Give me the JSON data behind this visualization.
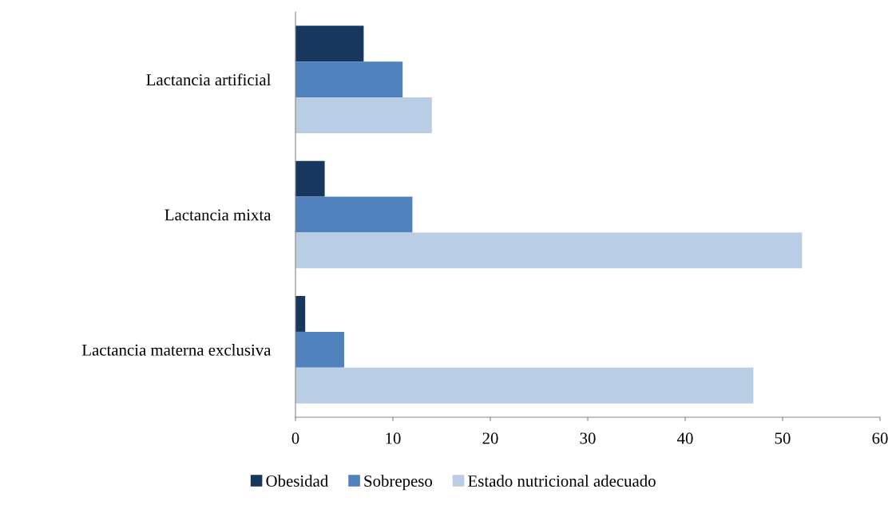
{
  "chart_data": {
    "type": "bar",
    "orientation": "horizontal",
    "categories": [
      "Lactancia artificial",
      "Lactancia mixta",
      "Lactancia materna exclusiva"
    ],
    "series": [
      {
        "name": "Obesidad",
        "color": "#17375e",
        "values": [
          7,
          3,
          1
        ]
      },
      {
        "name": "Sobrepeso",
        "color": "#4f81bd",
        "values": [
          11,
          12,
          5
        ]
      },
      {
        "name": "Estado nutricional adecuado",
        "color": "#b9cde5",
        "values": [
          14,
          52,
          47
        ]
      }
    ],
    "xlim": [
      0,
      60
    ],
    "xticks": [
      0,
      10,
      20,
      30,
      40,
      50,
      60
    ],
    "grid": false,
    "legend": "bottom"
  }
}
